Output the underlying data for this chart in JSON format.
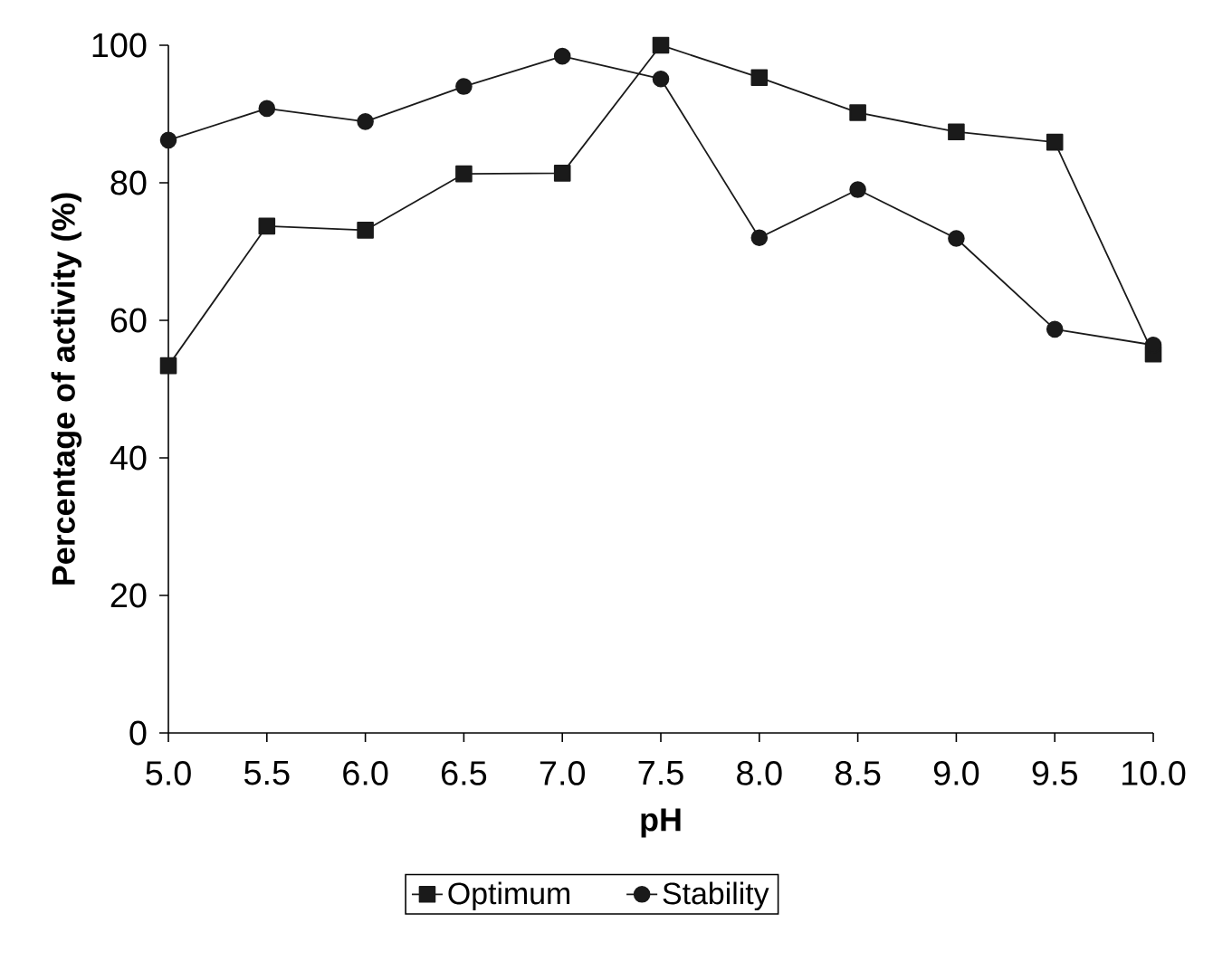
{
  "chart_data": {
    "type": "line",
    "xlabel": "pH",
    "ylabel": "Percentage of activity (%)",
    "x": [
      5.0,
      5.5,
      6.0,
      6.5,
      7.0,
      7.5,
      8.0,
      8.5,
      9.0,
      9.5,
      10.0
    ],
    "series": [
      {
        "name": "Optimum",
        "color": "#1a1a1a",
        "marker": "square",
        "values": [
          53.4,
          73.7,
          73.1,
          81.3,
          81.4,
          100,
          95.3,
          90.2,
          87.4,
          85.9,
          55.1
        ]
      },
      {
        "name": "Stability",
        "color": "#1a1a1a",
        "marker": "circle",
        "values": [
          86.2,
          90.8,
          88.9,
          94.0,
          98.4,
          95.1,
          72.0,
          79.0,
          71.9,
          58.7,
          56.4
        ]
      }
    ],
    "xlim": [
      5.0,
      10.0
    ],
    "xticks": [
      {
        "value": 5.0,
        "label": "5.0"
      },
      {
        "value": 5.5,
        "label": "5.5"
      },
      {
        "value": 6.0,
        "label": "6.0"
      },
      {
        "value": 6.5,
        "label": "6.5"
      },
      {
        "value": 7.0,
        "label": "7.0"
      },
      {
        "value": 7.5,
        "label": "7.5"
      },
      {
        "value": 8.0,
        "label": "8.0"
      },
      {
        "value": 8.5,
        "label": "8.5"
      },
      {
        "value": 9.0,
        "label": "9.0"
      },
      {
        "value": 9.5,
        "label": "9.5"
      },
      {
        "value": 10.0,
        "label": "10.0"
      }
    ],
    "ylim": [
      0,
      100
    ],
    "yticks": [
      0,
      20,
      40,
      60,
      80,
      100
    ],
    "grid": false,
    "legend": "bottom",
    "line_style": "solid"
  }
}
